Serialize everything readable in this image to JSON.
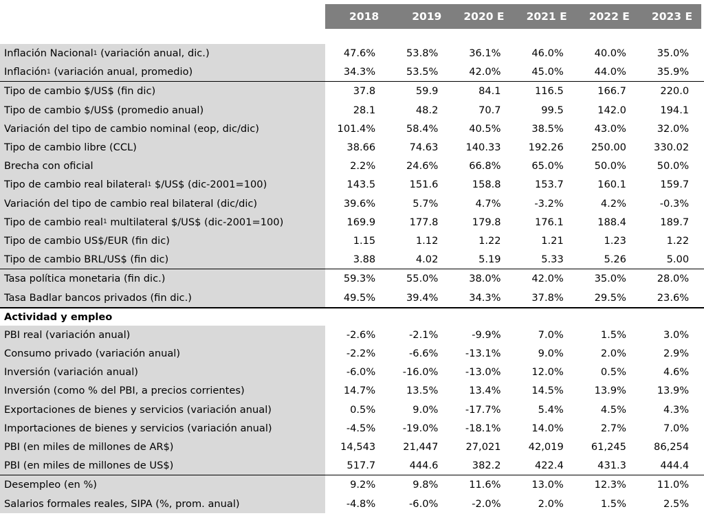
{
  "columns": [
    "2018",
    "2019",
    "2020 E",
    "2021 E",
    "2022 E",
    "2023 E"
  ],
  "groups": [
    [
      {
        "label": "Inflación Nacional",
        "sup": "1",
        "suffix": " (variación anual, dic.)",
        "values": [
          "47.6%",
          "53.8%",
          "36.1%",
          "46.0%",
          "40.0%",
          "35.0%"
        ]
      },
      {
        "label": "Inflación",
        "sup": "1",
        "suffix": " (variación anual, promedio)",
        "values": [
          "34.3%",
          "53.5%",
          "42.0%",
          "45.0%",
          "44.0%",
          "35.9%"
        ]
      }
    ],
    [
      {
        "label": "Tipo de cambio $/US$ (fin dic)",
        "values": [
          "37.8",
          "59.9",
          "84.1",
          "116.5",
          "166.7",
          "220.0"
        ]
      },
      {
        "label": "Tipo de cambio $/US$ (promedio anual)",
        "values": [
          "28.1",
          "48.2",
          "70.7",
          "99.5",
          "142.0",
          "194.1"
        ]
      },
      {
        "label": "Variación del tipo de cambio nominal (eop, dic/dic)",
        "values": [
          "101.4%",
          "58.4%",
          "40.5%",
          "38.5%",
          "43.0%",
          "32.0%"
        ]
      },
      {
        "label": "Tipo de cambio libre (CCL)",
        "values": [
          "38.66",
          "74.63",
          "140.33",
          "192.26",
          "250.00",
          "330.02"
        ]
      },
      {
        "label": "Brecha con oficial",
        "values": [
          "2.2%",
          "24.6%",
          "66.8%",
          "65.0%",
          "50.0%",
          "50.0%"
        ]
      },
      {
        "label": "Tipo de cambio real bilateral",
        "sup": "1",
        "suffix": " $/US$ (dic-2001=100)",
        "values": [
          "143.5",
          "151.6",
          "158.8",
          "153.7",
          "160.1",
          "159.7"
        ]
      },
      {
        "label": "Variación del tipo de cambio real bilateral (dic/dic)",
        "values": [
          "39.6%",
          "5.7%",
          "4.7%",
          "-3.2%",
          "4.2%",
          "-0.3%"
        ]
      },
      {
        "label": "Tipo de cambio real",
        "sup": "1",
        "suffix": " multilateral $/US$ (dic-2001=100)",
        "values": [
          "169.9",
          "177.8",
          "179.8",
          "176.1",
          "188.4",
          "189.7"
        ]
      },
      {
        "label": "Tipo de cambio US$/EUR (fin dic)",
        "values": [
          "1.15",
          "1.12",
          "1.22",
          "1.21",
          "1.23",
          "1.22"
        ]
      },
      {
        "label": "Tipo de cambio BRL/US$ (fin dic)",
        "values": [
          "3.88",
          "4.02",
          "5.19",
          "5.33",
          "5.26",
          "5.00"
        ]
      }
    ],
    [
      {
        "label": "Tasa política monetaria (fin dic.)",
        "values": [
          "59.3%",
          "55.0%",
          "38.0%",
          "42.0%",
          "35.0%",
          "28.0%"
        ]
      },
      {
        "label": "Tasa Badlar bancos privados (fin dic.)",
        "values": [
          "49.5%",
          "39.4%",
          "34.3%",
          "37.8%",
          "29.5%",
          "23.6%"
        ]
      }
    ]
  ],
  "section_title": "Actividad y empleo",
  "groups2": [
    [
      {
        "label": "PBI real (variación anual)",
        "values": [
          "-2.6%",
          "-2.1%",
          "-9.9%",
          "7.0%",
          "1.5%",
          "3.0%"
        ]
      },
      {
        "label": "Consumo privado (variación anual)",
        "values": [
          "-2.2%",
          "-6.6%",
          "-13.1%",
          "9.0%",
          "2.0%",
          "2.9%"
        ]
      },
      {
        "label": "Inversión (variación anual)",
        "values": [
          "-6.0%",
          "-16.0%",
          "-13.0%",
          "12.0%",
          "0.5%",
          "4.6%"
        ]
      },
      {
        "label": "Inversión (como % del PBI, a precios corrientes)",
        "values": [
          "14.7%",
          "13.5%",
          "13.4%",
          "14.5%",
          "13.9%",
          "13.9%"
        ]
      },
      {
        "label": "Exportaciones de bienes y servicios (variación anual)",
        "values": [
          "0.5%",
          "9.0%",
          "-17.7%",
          "5.4%",
          "4.5%",
          "4.3%"
        ]
      },
      {
        "label": "Importaciones de bienes y servicios (variación anual)",
        "values": [
          "-4.5%",
          "-19.0%",
          "-18.1%",
          "14.0%",
          "2.7%",
          "7.0%"
        ]
      },
      {
        "label": "PBI (en miles de millones de AR$)",
        "values": [
          "14,543",
          "21,447",
          "27,021",
          "42,019",
          "61,245",
          "86,254"
        ]
      },
      {
        "label": "PBI (en miles de millones de US$)",
        "values": [
          "517.7",
          "444.6",
          "382.2",
          "422.4",
          "431.3",
          "444.4"
        ]
      }
    ],
    [
      {
        "label": "Desempleo (en %)",
        "values": [
          "9.2%",
          "9.8%",
          "11.6%",
          "13.0%",
          "12.3%",
          "11.0%"
        ]
      },
      {
        "label": "Salarios formales reales, SIPA (%, prom. anual)",
        "values": [
          "-4.8%",
          "-6.0%",
          "-2.0%",
          "2.0%",
          "1.5%",
          "2.5%"
        ]
      }
    ]
  ]
}
